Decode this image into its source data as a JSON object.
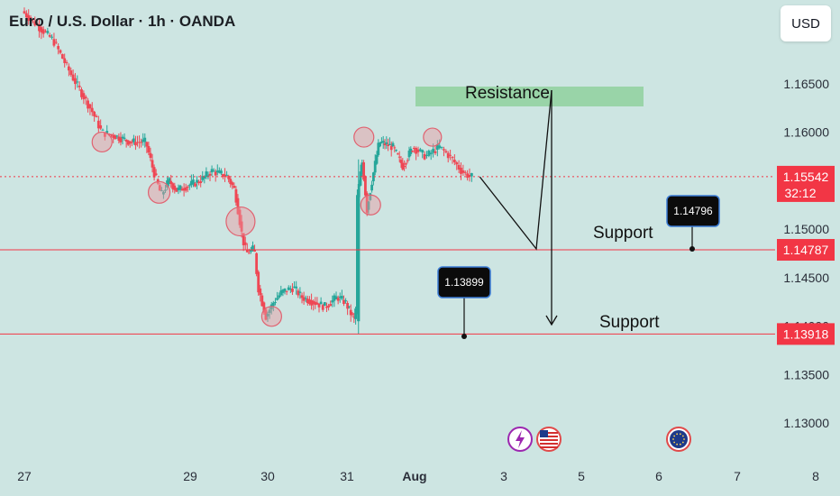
{
  "header": {
    "title": "Euro / U.S. Dollar · 1h · OANDA",
    "currency_button": "USD"
  },
  "colors": {
    "background": "#cde5e2",
    "up": "#26a69a",
    "down": "#ef4754",
    "resistance_fill": "#8fd19e",
    "price_line": "#f23645"
  },
  "chart_data": {
    "type": "candlestick",
    "ylim": [
      1.1265,
      1.1695
    ],
    "y_ticks": [
      "1.16500",
      "1.16000",
      "1.15500",
      "1.15000",
      "1.14500",
      "1.14000",
      "1.13500",
      "1.13000"
    ],
    "x_ticks": [
      {
        "label": "27",
        "pos": 0
      },
      {
        "label": "29",
        "pos": 2
      },
      {
        "label": "30",
        "pos": 3
      },
      {
        "label": "31",
        "pos": 4
      },
      {
        "label": "Aug",
        "pos": 5
      },
      {
        "label": "3",
        "pos": 6
      },
      {
        "label": "5",
        "pos": 7
      },
      {
        "label": "6",
        "pos": 8
      },
      {
        "label": "7",
        "pos": 9
      },
      {
        "label": "8",
        "pos": 10
      }
    ],
    "path_approx": [
      [
        0.0,
        1.1725
      ],
      [
        0.35,
        1.1695
      ],
      [
        0.55,
        1.166
      ],
      [
        0.8,
        1.162
      ],
      [
        0.9,
        1.16
      ],
      [
        1.1,
        1.1595
      ],
      [
        1.25,
        1.159
      ],
      [
        1.45,
        1.159
      ],
      [
        1.5,
        1.1575
      ],
      [
        1.55,
        1.156
      ],
      [
        1.65,
        1.1535
      ],
      [
        1.75,
        1.155
      ],
      [
        1.85,
        1.154
      ],
      [
        2.0,
        1.1545
      ],
      [
        2.15,
        1.155
      ],
      [
        2.3,
        1.156
      ],
      [
        2.5,
        1.1555
      ],
      [
        2.6,
        1.154
      ],
      [
        2.7,
        1.149
      ],
      [
        2.75,
        1.1475
      ],
      [
        2.85,
        1.148
      ],
      [
        2.9,
        1.144
      ],
      [
        3.0,
        1.141
      ],
      [
        3.1,
        1.1425
      ],
      [
        3.2,
        1.1435
      ],
      [
        3.35,
        1.144
      ],
      [
        3.45,
        1.143
      ],
      [
        3.6,
        1.1425
      ],
      [
        3.75,
        1.142
      ],
      [
        3.9,
        1.143
      ],
      [
        4.0,
        1.1425
      ],
      [
        4.1,
        1.141
      ],
      [
        4.15,
        1.1405
      ],
      [
        4.17,
        1.153
      ],
      [
        4.25,
        1.157
      ],
      [
        4.32,
        1.152
      ],
      [
        4.38,
        1.1545
      ],
      [
        4.5,
        1.159
      ],
      [
        4.7,
        1.1585
      ],
      [
        4.85,
        1.1565
      ],
      [
        5.0,
        1.1585
      ],
      [
        5.15,
        1.1575
      ],
      [
        5.3,
        1.1585
      ],
      [
        5.42,
        1.1575
      ],
      [
        5.55,
        1.156
      ],
      [
        5.65,
        1.1554
      ]
    ],
    "price_lines": {
      "resistance_level": "1.16500",
      "mid_support": "1.14787",
      "low_support": "1.13918"
    },
    "current_price": "1.15542",
    "countdown": "32:12",
    "annotations": {
      "resistance_label": "Resistance",
      "support_label_1": "Support",
      "support_label_2": "Support",
      "callout_1": "1.14796",
      "callout_2": "1.13899"
    },
    "projection_path": [
      [
        5.65,
        1.1554
      ],
      [
        5.8,
        1.1478
      ],
      [
        6.1,
        1.1638
      ],
      [
        6.1,
        1.1392
      ]
    ],
    "circled_points": [
      [
        0.88,
        1.159
      ],
      [
        1.6,
        1.1538
      ],
      [
        2.65,
        1.1508
      ],
      [
        3.05,
        1.141
      ],
      [
        4.25,
        1.1595
      ],
      [
        4.35,
        1.1525
      ],
      [
        5.2,
        1.1595
      ]
    ],
    "events": [
      "lightning-icon",
      "us-flag-icon",
      "eu-flag-icon"
    ]
  }
}
